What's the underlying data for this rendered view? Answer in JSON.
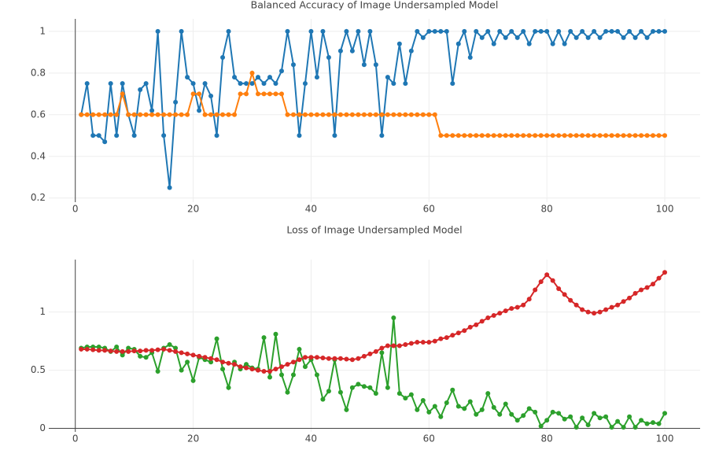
{
  "chart_data": [
    {
      "type": "line",
      "title": "Balanced Accuracy of Image Undersampled Model",
      "x": [
        1,
        2,
        3,
        4,
        5,
        6,
        7,
        8,
        9,
        10,
        11,
        12,
        13,
        14,
        15,
        16,
        17,
        18,
        19,
        20,
        21,
        22,
        23,
        24,
        25,
        26,
        27,
        28,
        29,
        30,
        31,
        32,
        33,
        34,
        35,
        36,
        37,
        38,
        39,
        40,
        41,
        42,
        43,
        44,
        45,
        46,
        47,
        48,
        49,
        50,
        51,
        52,
        53,
        54,
        55,
        56,
        57,
        58,
        59,
        60,
        61,
        62,
        63,
        64,
        65,
        66,
        67,
        68,
        69,
        70,
        71,
        72,
        73,
        74,
        75,
        76,
        77,
        78,
        79,
        80,
        81,
        82,
        83,
        84,
        85,
        86,
        87,
        88,
        89,
        90,
        91,
        92,
        93,
        94,
        95,
        96,
        97,
        98,
        99,
        100
      ],
      "series": [
        {
          "color": "#1f77b4",
          "values": [
            0.6,
            0.75,
            0.5,
            0.5,
            0.47,
            0.75,
            0.5,
            0.75,
            0.6,
            0.5,
            0.72,
            0.75,
            0.62,
            1.0,
            0.5,
            0.25,
            0.66,
            1.0,
            0.78,
            0.75,
            0.62,
            0.75,
            0.69,
            0.5,
            0.875,
            1.0,
            0.78,
            0.75,
            0.75,
            0.75,
            0.78,
            0.75,
            0.78,
            0.75,
            0.81,
            1.0,
            0.84,
            0.5,
            0.75,
            1.0,
            0.78,
            1.0,
            0.875,
            0.5,
            0.906,
            1.0,
            0.906,
            1.0,
            0.84,
            1.0,
            0.84,
            0.5,
            0.78,
            0.75,
            0.94,
            0.75,
            0.906,
            1.0,
            0.97,
            1.0,
            1.0,
            1.0,
            1.0,
            0.75,
            0.94,
            1.0,
            0.875,
            1.0,
            0.97,
            1.0,
            0.94,
            1.0,
            0.97,
            1.0,
            0.97,
            1.0,
            0.94,
            1.0,
            1.0,
            1.0,
            0.94,
            1.0,
            0.94,
            1.0,
            0.97,
            1.0,
            0.97,
            1.0,
            0.97,
            1.0,
            1.0,
            1.0,
            0.97,
            1.0,
            0.97,
            1.0,
            0.97,
            1.0,
            1.0,
            1.0
          ]
        },
        {
          "color": "#ff7f0e",
          "values": [
            0.6,
            0.6,
            0.6,
            0.6,
            0.6,
            0.6,
            0.6,
            0.7,
            0.6,
            0.6,
            0.6,
            0.6,
            0.6,
            0.6,
            0.6,
            0.6,
            0.6,
            0.6,
            0.6,
            0.7,
            0.7,
            0.6,
            0.6,
            0.6,
            0.6,
            0.6,
            0.6,
            0.7,
            0.7,
            0.8,
            0.7,
            0.7,
            0.7,
            0.7,
            0.7,
            0.6,
            0.6,
            0.6,
            0.6,
            0.6,
            0.6,
            0.6,
            0.6,
            0.6,
            0.6,
            0.6,
            0.6,
            0.6,
            0.6,
            0.6,
            0.6,
            0.6,
            0.6,
            0.6,
            0.6,
            0.6,
            0.6,
            0.6,
            0.6,
            0.6,
            0.6,
            0.5,
            0.5,
            0.5,
            0.5,
            0.5,
            0.5,
            0.5,
            0.5,
            0.5,
            0.5,
            0.5,
            0.5,
            0.5,
            0.5,
            0.5,
            0.5,
            0.5,
            0.5,
            0.5,
            0.5,
            0.5,
            0.5,
            0.5,
            0.5,
            0.5,
            0.5,
            0.5,
            0.5,
            0.5,
            0.5,
            0.5,
            0.5,
            0.5,
            0.5,
            0.5,
            0.5,
            0.5,
            0.5,
            0.5
          ]
        }
      ],
      "xlim": [
        -4.5,
        106
      ],
      "ylim": [
        0.18,
        1.06
      ],
      "xticks": [
        0,
        20,
        40,
        60,
        80,
        100
      ],
      "yticks": [
        0.2,
        0.4,
        0.6,
        0.8,
        1
      ],
      "grid": true
    },
    {
      "type": "line",
      "title": "Loss of Image Undersampled Model",
      "x": [
        1,
        2,
        3,
        4,
        5,
        6,
        7,
        8,
        9,
        10,
        11,
        12,
        13,
        14,
        15,
        16,
        17,
        18,
        19,
        20,
        21,
        22,
        23,
        24,
        25,
        26,
        27,
        28,
        29,
        30,
        31,
        32,
        33,
        34,
        35,
        36,
        37,
        38,
        39,
        40,
        41,
        42,
        43,
        44,
        45,
        46,
        47,
        48,
        49,
        50,
        51,
        52,
        53,
        54,
        55,
        56,
        57,
        58,
        59,
        60,
        61,
        62,
        63,
        64,
        65,
        66,
        67,
        68,
        69,
        70,
        71,
        72,
        73,
        74,
        75,
        76,
        77,
        78,
        79,
        80,
        81,
        82,
        83,
        84,
        85,
        86,
        87,
        88,
        89,
        90,
        91,
        92,
        93,
        94,
        95,
        96,
        97,
        98,
        99,
        100
      ],
      "series": [
        {
          "color": "#2ca02c",
          "values": [
            0.69,
            0.7,
            0.7,
            0.7,
            0.69,
            0.66,
            0.7,
            0.63,
            0.69,
            0.68,
            0.62,
            0.61,
            0.65,
            0.49,
            0.69,
            0.72,
            0.69,
            0.5,
            0.57,
            0.41,
            0.61,
            0.59,
            0.57,
            0.77,
            0.51,
            0.35,
            0.57,
            0.51,
            0.55,
            0.52,
            0.51,
            0.78,
            0.44,
            0.81,
            0.46,
            0.31,
            0.46,
            0.68,
            0.53,
            0.59,
            0.46,
            0.25,
            0.32,
            0.59,
            0.31,
            0.16,
            0.35,
            0.38,
            0.36,
            0.35,
            0.3,
            0.65,
            0.35,
            0.95,
            0.3,
            0.26,
            0.29,
            0.16,
            0.24,
            0.14,
            0.19,
            0.1,
            0.22,
            0.33,
            0.19,
            0.17,
            0.23,
            0.12,
            0.16,
            0.3,
            0.18,
            0.12,
            0.21,
            0.12,
            0.07,
            0.11,
            0.17,
            0.14,
            0.02,
            0.07,
            0.14,
            0.13,
            0.08,
            0.1,
            0.01,
            0.09,
            0.03,
            0.13,
            0.09,
            0.1,
            0.01,
            0.06,
            0.01,
            0.1,
            0.01,
            0.07,
            0.04,
            0.05,
            0.04,
            0.13
          ]
        },
        {
          "color": "#d62728",
          "values": [
            0.68,
            0.68,
            0.675,
            0.67,
            0.67,
            0.665,
            0.66,
            0.66,
            0.66,
            0.665,
            0.665,
            0.67,
            0.67,
            0.675,
            0.68,
            0.67,
            0.66,
            0.65,
            0.64,
            0.63,
            0.62,
            0.61,
            0.6,
            0.59,
            0.57,
            0.56,
            0.55,
            0.53,
            0.52,
            0.51,
            0.5,
            0.49,
            0.49,
            0.51,
            0.53,
            0.55,
            0.57,
            0.59,
            0.61,
            0.61,
            0.61,
            0.605,
            0.6,
            0.6,
            0.6,
            0.595,
            0.59,
            0.6,
            0.62,
            0.64,
            0.66,
            0.69,
            0.71,
            0.71,
            0.71,
            0.72,
            0.73,
            0.74,
            0.74,
            0.74,
            0.75,
            0.77,
            0.78,
            0.8,
            0.82,
            0.84,
            0.87,
            0.89,
            0.92,
            0.95,
            0.97,
            0.99,
            1.01,
            1.03,
            1.04,
            1.06,
            1.11,
            1.19,
            1.26,
            1.32,
            1.27,
            1.2,
            1.15,
            1.1,
            1.06,
            1.02,
            1.0,
            0.99,
            1.0,
            1.02,
            1.04,
            1.06,
            1.09,
            1.12,
            1.16,
            1.19,
            1.21,
            1.24,
            1.29,
            1.34
          ]
        }
      ],
      "xlim": [
        -4.5,
        106
      ],
      "ylim": [
        -0.03,
        1.45
      ],
      "xticks": [
        0,
        20,
        40,
        60,
        80,
        100
      ],
      "yticks": [
        0,
        0.5,
        1
      ],
      "grid": true
    }
  ]
}
